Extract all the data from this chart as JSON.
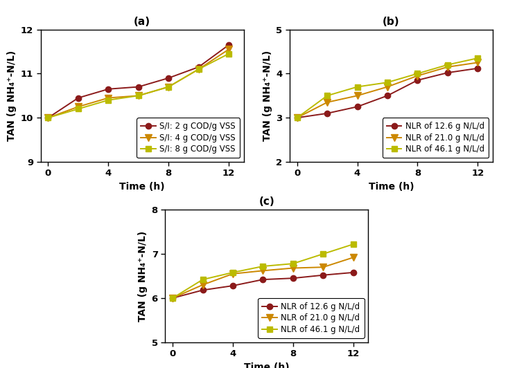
{
  "panel_a": {
    "title": "(a)",
    "xlabel": "Time (h)",
    "ylabel": "TAN (g NH₄⁺-N/L)",
    "xlim": [
      -0.5,
      13
    ],
    "ylim": [
      9,
      12
    ],
    "yticks": [
      9,
      10,
      11,
      12
    ],
    "xticks": [
      0,
      4,
      8,
      12
    ],
    "series": [
      {
        "label": "S/I: 2 g COD/g VSS",
        "color": "#8B1A1A",
        "marker": "o",
        "markersize": 6,
        "x": [
          0,
          2,
          4,
          6,
          8,
          10,
          12
        ],
        "y": [
          10.0,
          10.45,
          10.65,
          10.7,
          10.9,
          11.15,
          11.65
        ]
      },
      {
        "label": "S/I: 4 g COD/g VSS",
        "color": "#CC8800",
        "marker": "v",
        "markersize": 7,
        "x": [
          0,
          2,
          4,
          6,
          8,
          10,
          12
        ],
        "y": [
          10.0,
          10.25,
          10.45,
          10.5,
          10.7,
          11.1,
          11.55
        ]
      },
      {
        "label": "S/I: 8 g COD/g VSS",
        "color": "#BBBB00",
        "marker": "s",
        "markersize": 6,
        "x": [
          0,
          2,
          4,
          6,
          8,
          10,
          12
        ],
        "y": [
          10.0,
          10.2,
          10.4,
          10.5,
          10.7,
          11.1,
          11.45
        ]
      }
    ],
    "legend_loc": "lower right",
    "legend_bbox": null
  },
  "panel_b": {
    "title": "(b)",
    "xlabel": "Time (h)",
    "ylabel": "TAN (g NH₄⁺-N/L)",
    "xlim": [
      -0.5,
      13
    ],
    "ylim": [
      2,
      5
    ],
    "yticks": [
      2,
      3,
      4,
      5
    ],
    "xticks": [
      0,
      4,
      8,
      12
    ],
    "series": [
      {
        "label": "NLR of 12.6 g N/L/d",
        "color": "#8B1A1A",
        "marker": "o",
        "markersize": 6,
        "x": [
          0,
          2,
          4,
          6,
          8,
          10,
          12
        ],
        "y": [
          3.0,
          3.1,
          3.25,
          3.5,
          3.85,
          4.02,
          4.12
        ]
      },
      {
        "label": "NLR of 21.0 g N/L/d",
        "color": "#CC8800",
        "marker": "v",
        "markersize": 7,
        "x": [
          0,
          2,
          4,
          6,
          8,
          10,
          12
        ],
        "y": [
          3.0,
          3.35,
          3.5,
          3.7,
          3.95,
          4.15,
          4.25
        ]
      },
      {
        "label": "NLR of 46.1 g N/L/d",
        "color": "#BBBB00",
        "marker": "s",
        "markersize": 6,
        "x": [
          0,
          2,
          4,
          6,
          8,
          10,
          12
        ],
        "y": [
          3.0,
          3.5,
          3.7,
          3.8,
          4.0,
          4.2,
          4.35
        ]
      }
    ],
    "legend_loc": "lower right",
    "legend_bbox": null
  },
  "panel_c": {
    "title": "(c)",
    "xlabel": "Time (h)",
    "ylabel": "TAN (g NH₄⁺-N/L)",
    "xlim": [
      -0.5,
      13
    ],
    "ylim": [
      5,
      8
    ],
    "yticks": [
      5,
      6,
      7,
      8
    ],
    "xticks": [
      0,
      4,
      8,
      12
    ],
    "series": [
      {
        "label": "NLR of 12.6 g N/L/d",
        "color": "#8B1A1A",
        "marker": "o",
        "markersize": 6,
        "x": [
          0,
          2,
          4,
          6,
          8,
          10,
          12
        ],
        "y": [
          6.0,
          6.18,
          6.28,
          6.42,
          6.45,
          6.52,
          6.58
        ]
      },
      {
        "label": "NLR of 21.0 g N/L/d",
        "color": "#CC8800",
        "marker": "v",
        "markersize": 7,
        "x": [
          0,
          2,
          4,
          6,
          8,
          10,
          12
        ],
        "y": [
          6.0,
          6.3,
          6.55,
          6.62,
          6.68,
          6.7,
          6.92
        ]
      },
      {
        "label": "NLR of 46.1 g N/L/d",
        "color": "#BBBB00",
        "marker": "s",
        "markersize": 6,
        "x": [
          0,
          2,
          4,
          6,
          8,
          10,
          12
        ],
        "y": [
          6.0,
          6.42,
          6.58,
          6.72,
          6.78,
          7.0,
          7.22
        ]
      }
    ],
    "legend_loc": "lower right",
    "legend_bbox": null
  },
  "legend_fontsize": 8.5,
  "axis_label_fontsize": 10,
  "tick_fontsize": 9.5,
  "title_fontsize": 11,
  "line_width": 1.4
}
